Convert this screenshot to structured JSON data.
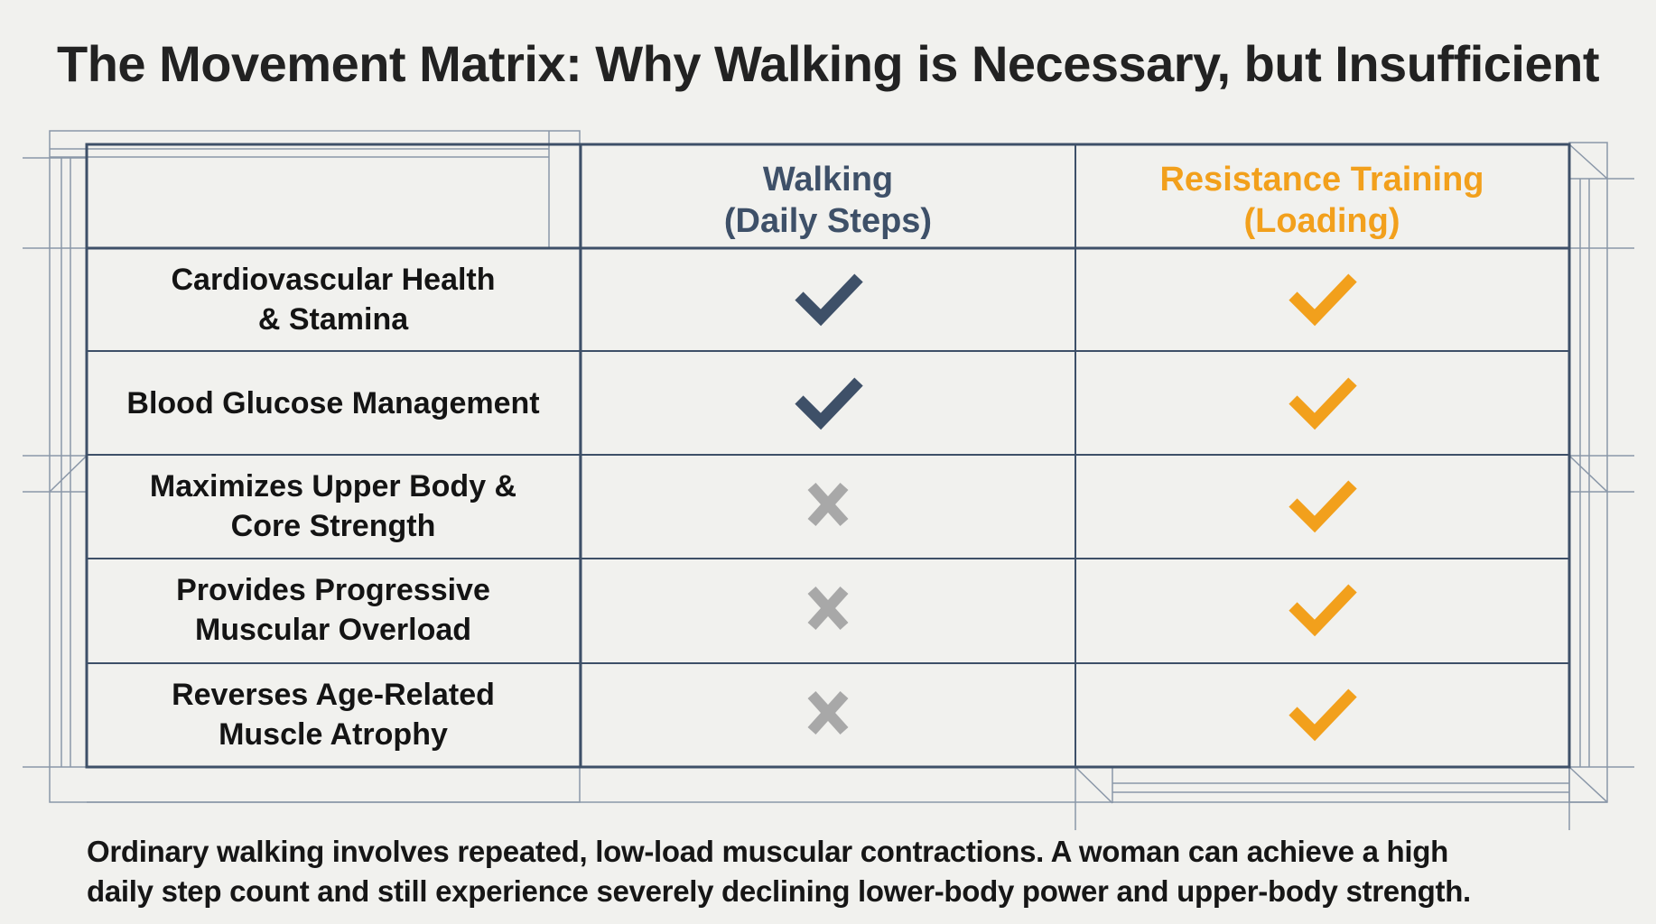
{
  "title": "The Movement Matrix: Why Walking is Necessary, but Insufficient",
  "colors": {
    "background": "#f1f1ee",
    "grid": "#3e5068",
    "walking": "#3e5068",
    "resistance": "#f2a01c",
    "cross": "#a8a8a8"
  },
  "columns": {
    "walking": {
      "line1": "Walking",
      "line2": "(Daily Steps)"
    },
    "resistance": {
      "line1": "Resistance Training",
      "line2": "(Loading)"
    }
  },
  "rows": [
    {
      "line1": "Cardiovascular Health",
      "line2": "& Stamina",
      "walking": "check",
      "resistance": "check"
    },
    {
      "line1": "Blood Glucose Management",
      "line2": "",
      "walking": "check",
      "resistance": "check"
    },
    {
      "line1": "Maximizes Upper Body &",
      "line2": "Core Strength",
      "walking": "cross",
      "resistance": "check"
    },
    {
      "line1": "Provides Progressive",
      "line2": "Muscular Overload",
      "walking": "cross",
      "resistance": "check"
    },
    {
      "line1": "Reverses Age-Related",
      "line2": "Muscle Atrophy",
      "walking": "cross",
      "resistance": "check"
    }
  ],
  "icons": {
    "check": "checkmark-icon",
    "cross": "x-mark-icon"
  },
  "footer": {
    "line1": "Ordinary walking involves repeated, low-load muscular contractions. A woman can achieve a high",
    "line2": "daily step count and still experience severely declining lower-body power and upper-body strength."
  }
}
